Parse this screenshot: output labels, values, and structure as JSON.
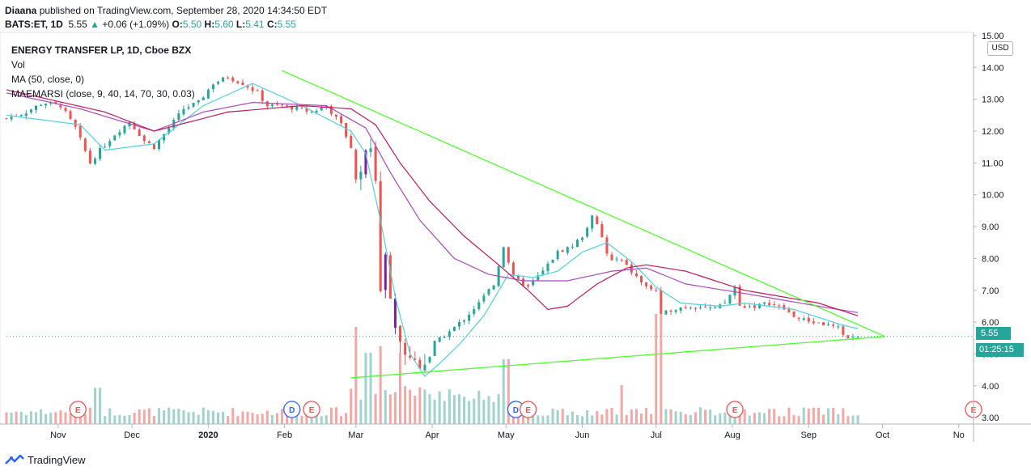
{
  "header": {
    "author": "Diaana",
    "published_text": "published on TradingView.com, September 28, 2020 14:34:50 EDT",
    "symbol": "BATS:ET, 1D",
    "last": "5.55",
    "change_arrow": "▲",
    "change": "+0.06 (+1.09%)",
    "o_label": "O:",
    "o_value": "5.50",
    "h_label": "H:",
    "h_value": "5.60",
    "l_label": "L:",
    "l_value": "5.41",
    "c_label": "C:",
    "c_value": "5.55"
  },
  "legend": {
    "title": "ENERGY TRANSFER LP, 1D, Cboe BZX",
    "vol": "Vol",
    "ma": "MA (50, close, 0)",
    "maemarsi": "MAEMARSI (close, 9, 40, 14, 70, 30, 0.03)"
  },
  "price_axis": {
    "currency": "USD",
    "last_price_tag": "5.55",
    "countdown_tag": "01:25:15"
  },
  "footer": {
    "brand": "TradingView"
  },
  "colors": {
    "up": "#26a69a",
    "down": "#ef5350",
    "purple": "#7b1fa2",
    "ma50": "#c2185b",
    "ma_fast": "#4dd0e1",
    "ma_slow": "#ab47bc",
    "trendline": "#4cff2a",
    "vol_up": "#9fd3cc",
    "vol_down": "#f4a7a5"
  },
  "chart_data": {
    "type": "candlestick",
    "title": "ENERGY TRANSFER LP, 1D, Cboe BZX",
    "ylim": [
      2.8,
      15.0
    ],
    "yticks": [
      "3.00",
      "4.00",
      "5.00",
      "6.00",
      "7.00",
      "8.00",
      "9.00",
      "10.00",
      "11.00",
      "12.00",
      "13.00",
      "14.00",
      "15.00"
    ],
    "xtick_labels": [
      "Nov",
      "Dec",
      "2020",
      "Feb",
      "Mar",
      "Apr",
      "May",
      "Jun",
      "Jul",
      "Aug",
      "Sep",
      "Oct",
      "No"
    ],
    "xtick_days": [
      21,
      51,
      82,
      113,
      142,
      173,
      203,
      234,
      264,
      295,
      326,
      356,
      387
    ],
    "x_range_days": [
      0,
      393
    ],
    "price_anchors": [
      [
        0,
        12.4
      ],
      [
        8,
        12.6
      ],
      [
        15,
        12.9
      ],
      [
        22,
        12.8
      ],
      [
        28,
        12.1
      ],
      [
        34,
        11.0
      ],
      [
        38,
        11.4
      ],
      [
        44,
        11.9
      ],
      [
        50,
        12.3
      ],
      [
        56,
        11.7
      ],
      [
        60,
        11.5
      ],
      [
        66,
        12.1
      ],
      [
        72,
        12.7
      ],
      [
        78,
        12.9
      ],
      [
        84,
        13.5
      ],
      [
        90,
        13.7
      ],
      [
        96,
        13.5
      ],
      [
        102,
        13.2
      ],
      [
        106,
        12.8
      ],
      [
        112,
        12.8
      ],
      [
        118,
        12.7
      ],
      [
        124,
        12.6
      ],
      [
        130,
        12.8
      ],
      [
        136,
        12.2
      ],
      [
        140,
        11.5
      ],
      [
        143,
        10.3
      ],
      [
        147,
        12.0
      ],
      [
        150,
        10.5
      ],
      [
        152,
        7.0
      ],
      [
        154,
        8.0
      ],
      [
        157,
        6.4
      ],
      [
        160,
        5.3
      ],
      [
        163,
        5.0
      ],
      [
        167,
        4.7
      ],
      [
        171,
        4.8
      ],
      [
        175,
        5.4
      ],
      [
        180,
        5.7
      ],
      [
        186,
        6.1
      ],
      [
        192,
        6.6
      ],
      [
        198,
        7.2
      ],
      [
        202,
        8.4
      ],
      [
        206,
        7.4
      ],
      [
        212,
        7.1
      ],
      [
        218,
        7.6
      ],
      [
        224,
        8.2
      ],
      [
        230,
        8.4
      ],
      [
        234,
        8.7
      ],
      [
        238,
        9.3
      ],
      [
        241,
        8.9
      ],
      [
        245,
        7.9
      ],
      [
        249,
        8.0
      ],
      [
        255,
        7.5
      ],
      [
        260,
        7.1
      ],
      [
        264,
        7.0
      ],
      [
        266,
        6.2
      ],
      [
        270,
        6.4
      ],
      [
        276,
        6.5
      ],
      [
        282,
        6.5
      ],
      [
        288,
        6.4
      ],
      [
        292,
        6.6
      ],
      [
        296,
        7.1
      ],
      [
        298,
        6.5
      ],
      [
        304,
        6.5
      ],
      [
        310,
        6.6
      ],
      [
        316,
        6.4
      ],
      [
        322,
        6.1
      ],
      [
        328,
        6.0
      ],
      [
        334,
        5.9
      ],
      [
        338,
        5.8
      ],
      [
        342,
        5.5
      ],
      [
        346,
        5.55
      ]
    ],
    "volume_spikes": [
      {
        "day": 142,
        "rel": 0.75
      },
      {
        "day": 147,
        "rel": 0.55
      },
      {
        "day": 152,
        "rel": 0.6
      },
      {
        "day": 160,
        "rel": 0.55
      },
      {
        "day": 203,
        "rel": 0.5
      },
      {
        "day": 265,
        "rel": 0.85
      },
      {
        "day": 37,
        "rel": 0.28
      },
      {
        "day": 250,
        "rel": 0.3
      }
    ],
    "indicators": {
      "ma_fast": [
        [
          0,
          12.5
        ],
        [
          30,
          12.2
        ],
        [
          40,
          11.4
        ],
        [
          60,
          11.6
        ],
        [
          80,
          12.8
        ],
        [
          100,
          13.5
        ],
        [
          120,
          12.8
        ],
        [
          140,
          12.0
        ],
        [
          146,
          11.3
        ],
        [
          152,
          9.2
        ],
        [
          158,
          6.8
        ],
        [
          164,
          5.0
        ],
        [
          170,
          4.3
        ],
        [
          176,
          4.7
        ],
        [
          184,
          5.3
        ],
        [
          194,
          6.2
        ],
        [
          204,
          7.5
        ],
        [
          214,
          7.4
        ],
        [
          224,
          7.6
        ],
        [
          234,
          8.2
        ],
        [
          244,
          8.5
        ],
        [
          254,
          7.9
        ],
        [
          264,
          7.1
        ],
        [
          274,
          6.6
        ],
        [
          290,
          6.5
        ],
        [
          300,
          6.6
        ],
        [
          320,
          6.4
        ],
        [
          340,
          5.9
        ],
        [
          346,
          5.8
        ]
      ],
      "ma_slow": [
        [
          0,
          13.2
        ],
        [
          30,
          12.7
        ],
        [
          60,
          12.0
        ],
        [
          80,
          12.6
        ],
        [
          100,
          12.9
        ],
        [
          130,
          12.8
        ],
        [
          146,
          12.1
        ],
        [
          156,
          10.7
        ],
        [
          168,
          9.2
        ],
        [
          182,
          8.0
        ],
        [
          196,
          7.5
        ],
        [
          210,
          7.3
        ],
        [
          228,
          7.3
        ],
        [
          246,
          7.6
        ],
        [
          260,
          7.7
        ],
        [
          276,
          7.2
        ],
        [
          300,
          6.9
        ],
        [
          330,
          6.5
        ],
        [
          346,
          6.3
        ]
      ],
      "ma50": [
        [
          0,
          13.3
        ],
        [
          40,
          12.6
        ],
        [
          60,
          12.0
        ],
        [
          90,
          12.6
        ],
        [
          120,
          12.8
        ],
        [
          140,
          12.7
        ],
        [
          150,
          12.2
        ],
        [
          160,
          11.0
        ],
        [
          172,
          9.8
        ],
        [
          186,
          8.7
        ],
        [
          200,
          7.8
        ],
        [
          212,
          7.0
        ],
        [
          220,
          6.4
        ],
        [
          228,
          6.5
        ],
        [
          240,
          7.2
        ],
        [
          252,
          7.7
        ],
        [
          260,
          7.8
        ],
        [
          276,
          7.6
        ],
        [
          300,
          7.0
        ],
        [
          330,
          6.6
        ],
        [
          346,
          6.2
        ]
      ]
    },
    "trendlines": [
      {
        "name": "upper",
        "points": [
          [
            112,
            13.9
          ],
          [
            357,
            5.55
          ]
        ]
      },
      {
        "name": "lower",
        "points": [
          [
            140,
            4.25
          ],
          [
            357,
            5.55
          ]
        ]
      }
    ],
    "event_markers": [
      {
        "day": 29,
        "label": "E"
      },
      {
        "day": 116,
        "label": "D"
      },
      {
        "day": 124,
        "label": "E"
      },
      {
        "day": 207,
        "label": "D"
      },
      {
        "day": 212,
        "label": "E"
      },
      {
        "day": 296,
        "label": "E"
      },
      {
        "day": 393,
        "label": "E"
      }
    ],
    "last_price": 5.55
  }
}
